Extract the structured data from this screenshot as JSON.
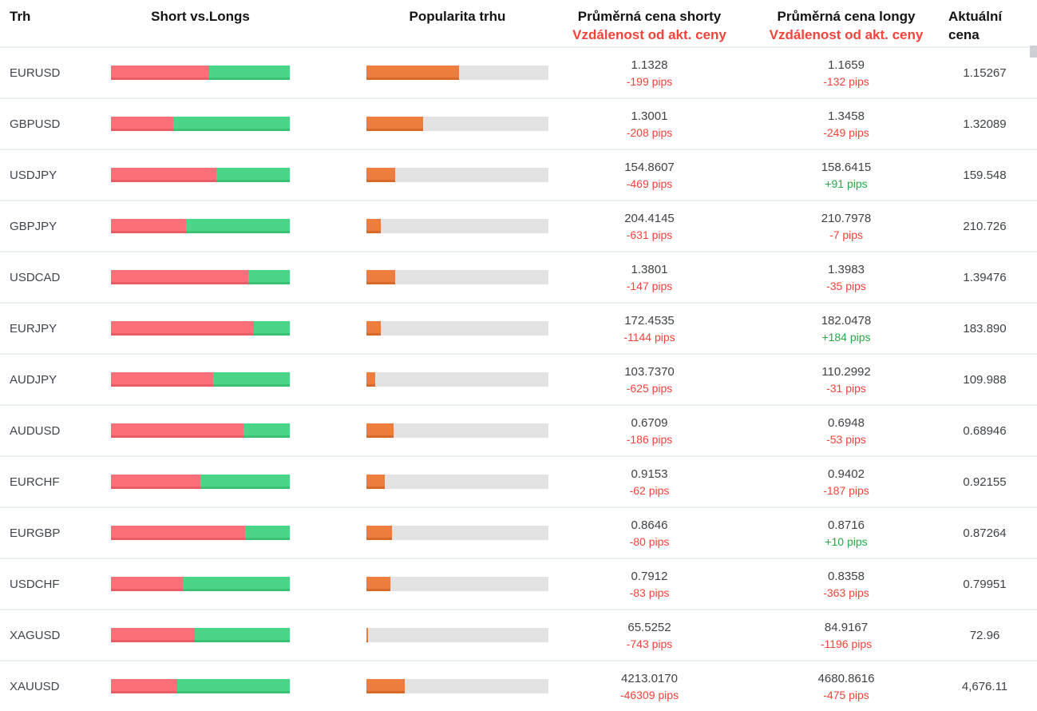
{
  "table": {
    "headers": {
      "market": "Trh",
      "short_vs_longs": "Short vs.Longs",
      "popularity": "Popularita trhu",
      "avg_short_line1": "Průměrná cena shorty",
      "avg_short_line2": "Vzdálenost od akt. ceny",
      "avg_long_line1": "Průměrná cena longy",
      "avg_long_line2": "Vzdálenost od akt. ceny",
      "current_line1": "Aktuální",
      "current_line2": "cena"
    },
    "rows": [
      {
        "market": "EURUSD",
        "short_pct": 55,
        "long_pct": 45,
        "popularity_pct": 51,
        "avg_short_price": "1.1328",
        "avg_short_pips": "-199 pips",
        "avg_long_price": "1.1659",
        "avg_long_pips": "-132 pips",
        "current_price": "1.15267"
      },
      {
        "market": "GBPUSD",
        "short_pct": 35,
        "long_pct": 65,
        "popularity_pct": 31,
        "avg_short_price": "1.3001",
        "avg_short_pips": "-208 pips",
        "avg_long_price": "1.3458",
        "avg_long_pips": "-249 pips",
        "current_price": "1.32089"
      },
      {
        "market": "USDJPY",
        "short_pct": 59,
        "long_pct": 41,
        "popularity_pct": 16,
        "avg_short_price": "154.8607",
        "avg_short_pips": "-469 pips",
        "avg_long_price": "158.6415",
        "avg_long_pips": "+91 pips",
        "current_price": "159.548"
      },
      {
        "market": "GBPJPY",
        "short_pct": 42,
        "long_pct": 58,
        "popularity_pct": 8,
        "avg_short_price": "204.4145",
        "avg_short_pips": "-631 pips",
        "avg_long_price": "210.7978",
        "avg_long_pips": "-7 pips",
        "current_price": "210.726"
      },
      {
        "market": "USDCAD",
        "short_pct": 77,
        "long_pct": 23,
        "popularity_pct": 16,
        "avg_short_price": "1.3801",
        "avg_short_pips": "-147 pips",
        "avg_long_price": "1.3983",
        "avg_long_pips": "-35 pips",
        "current_price": "1.39476"
      },
      {
        "market": "EURJPY",
        "short_pct": 80,
        "long_pct": 20,
        "popularity_pct": 8,
        "avg_short_price": "172.4535",
        "avg_short_pips": "-1144 pips",
        "avg_long_price": "182.0478",
        "avg_long_pips": "+184 pips",
        "current_price": "183.890"
      },
      {
        "market": "AUDJPY",
        "short_pct": 57,
        "long_pct": 43,
        "popularity_pct": 5,
        "avg_short_price": "103.7370",
        "avg_short_pips": "-625 pips",
        "avg_long_price": "110.2992",
        "avg_long_pips": "-31 pips",
        "current_price": "109.988"
      },
      {
        "market": "AUDUSD",
        "short_pct": 74,
        "long_pct": 26,
        "popularity_pct": 15,
        "avg_short_price": "0.6709",
        "avg_short_pips": "-186 pips",
        "avg_long_price": "0.6948",
        "avg_long_pips": "-53 pips",
        "current_price": "0.68946"
      },
      {
        "market": "EURCHF",
        "short_pct": 50,
        "long_pct": 50,
        "popularity_pct": 10,
        "avg_short_price": "0.9153",
        "avg_short_pips": "-62 pips",
        "avg_long_price": "0.9402",
        "avg_long_pips": "-187 pips",
        "current_price": "0.92155"
      },
      {
        "market": "EURGBP",
        "short_pct": 75,
        "long_pct": 25,
        "popularity_pct": 14,
        "avg_short_price": "0.8646",
        "avg_short_pips": "-80 pips",
        "avg_long_price": "0.8716",
        "avg_long_pips": "+10 pips",
        "current_price": "0.87264"
      },
      {
        "market": "USDCHF",
        "short_pct": 40,
        "long_pct": 60,
        "popularity_pct": 13,
        "avg_short_price": "0.7912",
        "avg_short_pips": "-83 pips",
        "avg_long_price": "0.8358",
        "avg_long_pips": "-363 pips",
        "current_price": "0.79951"
      },
      {
        "market": "XAGUSD",
        "short_pct": 47,
        "long_pct": 53,
        "popularity_pct": 1,
        "avg_short_price": "65.5252",
        "avg_short_pips": "-743 pips",
        "avg_long_price": "84.9167",
        "avg_long_pips": "-1196 pips",
        "current_price": "72.96"
      },
      {
        "market": "XAUUSD",
        "short_pct": 37,
        "long_pct": 63,
        "popularity_pct": 21,
        "avg_short_price": "4213.0170",
        "avg_short_pips": "-46309 pips",
        "avg_long_price": "4680.8616",
        "avg_long_pips": "-475 pips",
        "current_price": "4,676.11"
      }
    ]
  },
  "colors": {
    "short_bar": "#fc6e78",
    "long_bar": "#4bd588",
    "popularity_bar": "#ec7d3d",
    "track": "#e3e3e3",
    "negative_text": "#f4433a",
    "positive_text": "#28a745",
    "header_sub_red": "#f4433a"
  }
}
